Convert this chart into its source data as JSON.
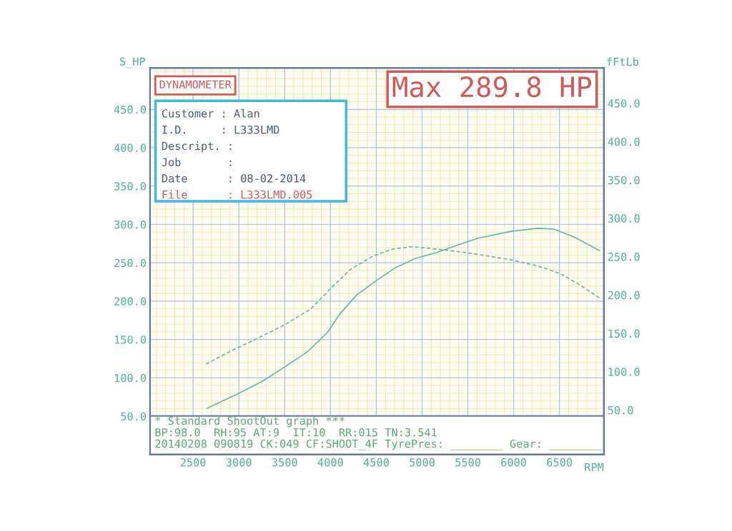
{
  "chart_data": {
    "type": "line",
    "title": "Max 289.8 HP",
    "subtitle": "DYNAMOMETER",
    "xlabel": "RPM",
    "ylabel": "S_HP",
    "y2label": "fFtLb",
    "annotations": [
      "Customer : Alan",
      "I.D.     : L333LMD",
      "Descript. :",
      "Job       :",
      "Date      : 08-02-2014",
      "File      : L333LMD.005",
      "* Standard ShootOut graph ***",
      "BP:98.0  RH:95 AT:9  IT:10  RR:015 TN:3.541",
      "20140208 090819 CK:049 CF:SHOOT_4F TyrePres: ________ Gear: ________"
    ],
    "series": [
      {
        "color": "#5bbcaa",
        "line_style": "solid",
        "x": [
          2648,
          2999,
          3249,
          3498,
          3748,
          3966,
          4106,
          4286,
          4504,
          4714,
          4933,
          5151,
          5362,
          5611,
          5970,
          6258,
          6438,
          6656,
          6937
        ],
        "values": [
          60,
          80,
          95,
          114,
          134,
          159,
          184,
          208,
          227,
          244,
          256,
          263,
          272,
          282,
          291,
          295,
          294,
          284,
          266
        ]
      },
      {
        "color": "#5bbcaa",
        "line_style": "dashed",
        "axis": "y2",
        "x": [
          2640,
          2929,
          3210,
          3498,
          3787,
          3997,
          4215,
          4465,
          4683,
          4894,
          5151,
          5502,
          5970,
          6258,
          6508,
          6726,
          6937
        ],
        "values": [
          110,
          128,
          144,
          161,
          182,
          208,
          233,
          251,
          260,
          263,
          260,
          255,
          246,
          238,
          228,
          213,
          196
        ]
      }
    ],
    "xlim": [
      2030,
      6985
    ],
    "xticks": [
      2500,
      3000,
      3500,
      4000,
      4500,
      5000,
      5500,
      6000,
      6500
    ],
    "ylim": [
      0,
      504
    ],
    "yticks": [
      {
        "value": 50,
        "label": "50.0"
      },
      {
        "value": 100,
        "label": "100.0"
      },
      {
        "value": 150,
        "label": "150.0"
      },
      {
        "value": 200,
        "label": "200.0"
      },
      {
        "value": 250,
        "label": "250.0"
      },
      {
        "value": 300,
        "label": "300.0"
      },
      {
        "value": 350,
        "label": "350.0"
      },
      {
        "value": 400,
        "label": "400.0"
      },
      {
        "value": 450,
        "label": "450.0"
      }
    ],
    "y2lim": [
      -8,
      496
    ],
    "y2ticks": [
      {
        "value": 50,
        "label": "50.0"
      },
      {
        "value": 100,
        "label": "100.0"
      },
      {
        "value": 150,
        "label": "150.0"
      },
      {
        "value": 200,
        "label": "200.0"
      },
      {
        "value": 250,
        "label": "250.0"
      },
      {
        "value": 300,
        "label": "300.0"
      },
      {
        "value": 350,
        "label": "350.0"
      },
      {
        "value": 400,
        "label": "400.0"
      },
      {
        "value": 450,
        "label": "450.0"
      }
    ],
    "grid": true,
    "legend": false
  }
}
